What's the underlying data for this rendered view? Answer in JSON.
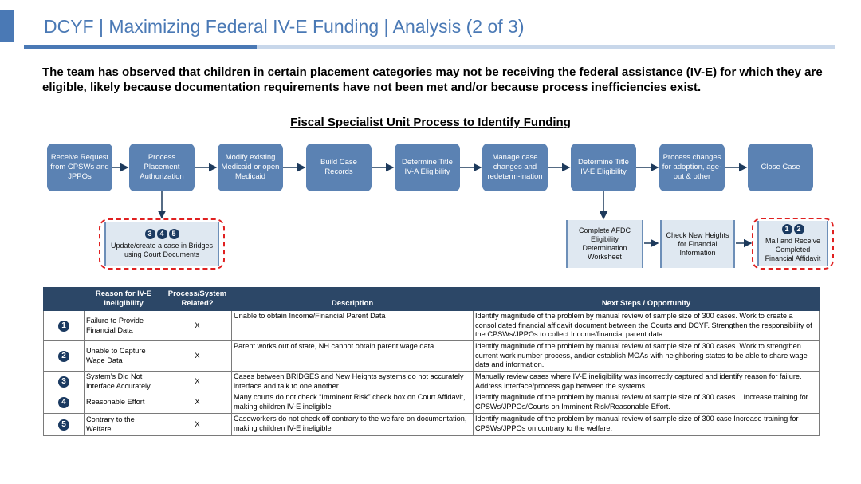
{
  "header": {
    "title": "DCYF | Maximizing Federal IV-E Funding | Analysis (2 of 3)"
  },
  "intro": "The team has observed that children in certain placement categories may not be receiving the federal assistance (IV-E) for which they are eligible, likely because documentation requirements have not been met and/or because process inefficiencies exist.",
  "process": {
    "title": "Fiscal Specialist Unit Process to Identify Funding",
    "steps": [
      {
        "label": "Receive Request from CPSWs and JPPOs"
      },
      {
        "label": "Process Placement Authorization"
      },
      {
        "label": "Modify existing Medicaid or open Medicaid"
      },
      {
        "label": "Build Case Records"
      },
      {
        "label": "Determine Title IV-A Eligibility"
      },
      {
        "label": "Manage case changes and redeterm-ination"
      },
      {
        "label": "Determine Title IV-E Eligibility"
      },
      {
        "label": "Process changes for adoption, age-out & other"
      },
      {
        "label": "Close Case"
      }
    ],
    "substeps": {
      "update_case": {
        "badges": [
          "3",
          "4",
          "5"
        ],
        "label": "Update/create a case in Bridges using Court Documents"
      },
      "afdc": {
        "label": "Complete AFDC Eligibility Determination Worksheet"
      },
      "new_heights": {
        "label": "Check New Heights for Financial Information"
      },
      "affidavit": {
        "badges": [
          "1",
          "2"
        ],
        "label": "Mail and Receive Completed Financial Affidavit"
      }
    }
  },
  "table": {
    "headers": {
      "reason": "Reason for IV-E Ineligibility",
      "related": "Process/System Related?",
      "description": "Description",
      "next_steps": "Next Steps / Opportunity"
    },
    "rows": [
      {
        "num": "1",
        "reason": "Failure to Provide Financial Data",
        "related": "X",
        "description": "Unable to obtain Income/Financial Parent Data",
        "next_steps": "Identify magnitude of the problem by manual review of sample size of 300 cases. Work to create a consolidated financial affidavit document between the Courts and DCYF. Strengthen the responsibility of the CPSWs/JPPOs to collect Income/financial parent data."
      },
      {
        "num": "2",
        "reason": "Unable to Capture Wage Data",
        "related": "X",
        "description": "Parent works out of state, NH cannot obtain parent wage data",
        "next_steps": "Identify magnitude of the problem by manual review of sample size of 300 cases. Work to strengthen current work number process, and/or establish MOAs with neighboring states to be able to share wage data and information."
      },
      {
        "num": "3",
        "reason": "System’s Did Not Interface Accurately",
        "related": "X",
        "description": "Cases between BRIDGES and New Heights systems do not accurately interface and talk to one another",
        "next_steps": "Manually review cases where IV-E ineligibility was incorrectly captured and identify reason for failure. Address interface/process gap between the systems."
      },
      {
        "num": "4",
        "reason": "Reasonable Effort",
        "related": "X",
        "description": "Many courts do not check “Imminent Risk” check box on Court Affidavit, making children IV-E ineligible",
        "next_steps": "Identify magnitude of the problem by manual review of sample size of 300 cases. . Increase training for CPSWs/JPPOs/Courts on Imminent Risk/Reasonable Effort."
      },
      {
        "num": "5",
        "reason": "Contrary to the Welfare",
        "related": "X",
        "description": "Caseworkers do not check off contrary to the welfare on documentation, making children IV-E ineligible",
        "next_steps": "Identify magnitude of the problem by manual review of sample size of 300 case Increase training for CPSWs/JPPOs on contrary to the welfare."
      }
    ]
  },
  "colors": {
    "accent": "#4a79b5",
    "process_box": "#5b82b3",
    "table_header": "#2c4767",
    "badge": "#1b3a61",
    "highlight_dash": "#e02020"
  }
}
